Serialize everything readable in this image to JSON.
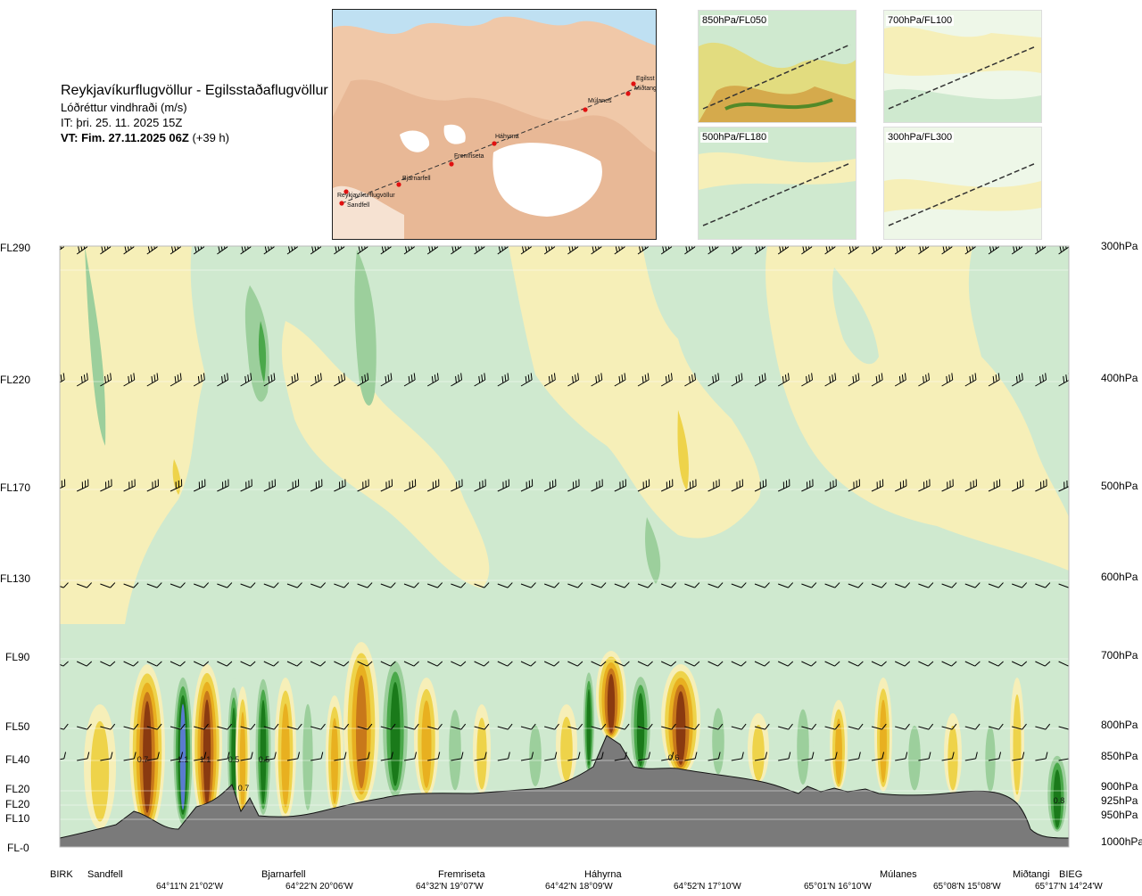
{
  "header": {
    "route": "Reykjavíkurflugvöllur - Egilsstaðaflugvöllur",
    "parameter": "Lóðréttur vindhraði (m/s)",
    "init_time": "IT: þri. 25. 11. 2025 15Z",
    "valid_time_bold": "VT: Fim. 27.11.2025 06Z",
    "valid_offset": "(+39 h)"
  },
  "map": {
    "waypoints": [
      "Reykjavíkurflugvöllur",
      "Sandfell",
      "Bjarnarfell",
      "Fremriseta",
      "Háhyrna",
      "Múlanes",
      "Miðtangi",
      "Egilsst"
    ]
  },
  "thumbnails": [
    {
      "label": "850hPa/FL050"
    },
    {
      "label": "700hPa/FL100"
    },
    {
      "label": "500hPa/FL180"
    },
    {
      "label": "300hPa/FL300"
    }
  ],
  "colors": {
    "descent_strong": "#5a7bd0",
    "descent_dark": "#1a7a1a",
    "descent_mid": "#4aa84a",
    "descent_weak": "#9ccf9c",
    "neutral_down": "#cfe9cf",
    "neutral": "#eef7e8",
    "neutral_up": "#f6efb8",
    "ascent_weak": "#eed34a",
    "ascent_mid": "#e8b020",
    "ascent_strong": "#c8781a",
    "ascent_max": "#8a3a10",
    "terrain": "#7a7a7a"
  },
  "chart_data": {
    "type": "heatmap",
    "title": "",
    "xlabel": "",
    "ylabel": "",
    "flight_levels": [
      "FL290",
      "FL220",
      "FL170",
      "FL130",
      "FL90",
      "FL50",
      "FL40",
      "FL20",
      "FL20",
      "FL10",
      "FL-0"
    ],
    "pressure_levels": [
      "300hPa",
      "400hPa",
      "500hPa",
      "600hPa",
      "700hPa",
      "800hPa",
      "850hPa",
      "900hPa",
      "925hPa",
      "950hPa",
      "1000hPa"
    ],
    "pressure_values_hpa": [
      300,
      400,
      500,
      600,
      700,
      800,
      850,
      900,
      925,
      950,
      1000
    ],
    "waypoints": [
      "BIRK",
      "Sandfell",
      "Bjarnarfell",
      "Fremriseta",
      "Háhyrna",
      "Múlanes",
      "Miðtangi",
      "BIEG"
    ],
    "coordinates": [
      "64°11'N 21°02'W",
      "64°22'N 20°06'W",
      "64°32'N 19°07'W",
      "64°42'N 18°09'W",
      "64°52'N 17°10'W",
      "65°01'N 16°10'W",
      "65°08'N 15°08'W",
      "65°17'N 14°24'W"
    ],
    "value_labels": [
      "0.7",
      "1.1",
      "1.1",
      "0.5",
      "0.5",
      "0.7",
      "0.6",
      "0.8"
    ],
    "x_range": [
      0,
      1
    ],
    "grid": false,
    "legend": "none"
  }
}
